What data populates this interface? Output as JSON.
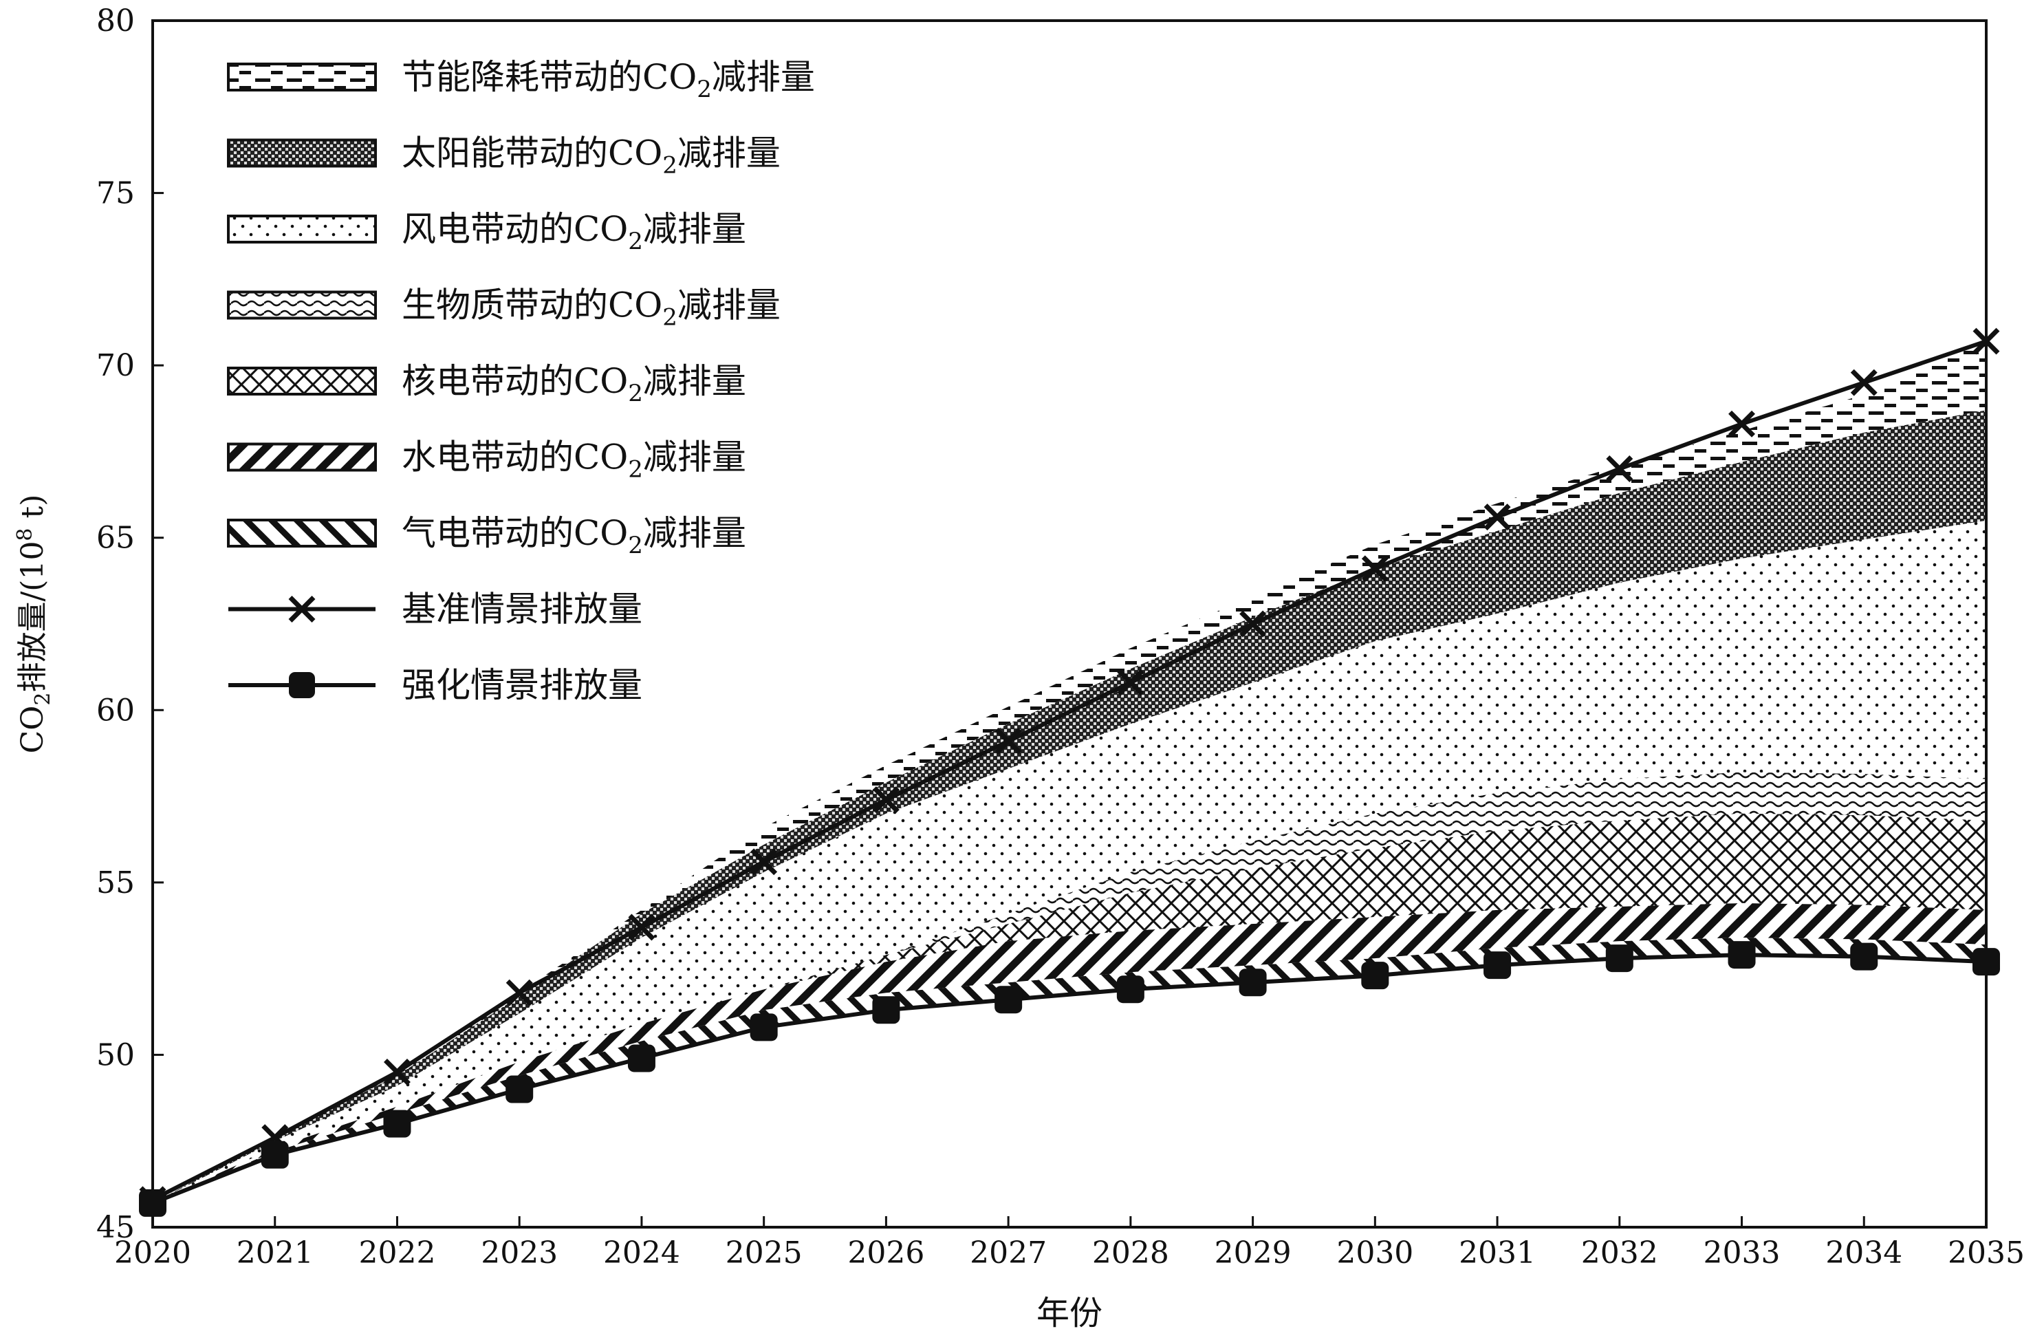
{
  "chart_data": {
    "type": "area",
    "xlabel": "年份",
    "ylabel_main": "CO",
    "ylabel_sub": "2",
    "ylabel_rest": "排放量/(10",
    "ylabel_sup": "8",
    "ylabel_tail": " t)",
    "x": [
      2020,
      2021,
      2022,
      2023,
      2024,
      2025,
      2026,
      2027,
      2028,
      2029,
      2030,
      2031,
      2032,
      2033,
      2034,
      2035
    ],
    "x_tick_labels": [
      "2020",
      "2021",
      "2022",
      "2023",
      "2024",
      "2025",
      "2026",
      "2027",
      "2028",
      "2029",
      "2030",
      "2031",
      "2032",
      "2033",
      "2034",
      "2035"
    ],
    "ylim": [
      45,
      80
    ],
    "y_ticks": [
      45,
      50,
      55,
      60,
      65,
      70,
      75,
      80
    ],
    "y_tick_labels": [
      "45",
      "50",
      "55",
      "60",
      "65",
      "70",
      "75",
      "80"
    ],
    "baseline_series": {
      "name": "基准情景排放量",
      "marker": "x",
      "values": [
        45.8,
        47.6,
        49.5,
        51.8,
        53.7,
        55.6,
        57.4,
        59.1,
        60.8,
        62.5,
        64.1,
        65.6,
        67.0,
        68.3,
        69.5,
        70.7
      ]
    },
    "enhanced_series": {
      "name": "强化情景排放量",
      "marker": "square",
      "values": [
        45.7,
        47.1,
        48.0,
        49.0,
        49.9,
        50.8,
        51.3,
        51.6,
        51.9,
        52.1,
        52.3,
        52.6,
        52.8,
        52.9,
        52.85,
        52.7
      ]
    },
    "stacked_areas": [
      {
        "name": "气电带动的CO2减排量",
        "pattern": "diag-right",
        "values": [
          0,
          0.1,
          0.3,
          0.4,
          0.5,
          0.5,
          0.5,
          0.5,
          0.5,
          0.5,
          0.5,
          0.5,
          0.5,
          0.5,
          0.5,
          0.5
        ]
      },
      {
        "name": "水电带动的CO2减排量",
        "pattern": "diag-left",
        "values": [
          0,
          0.1,
          0.2,
          0.4,
          0.5,
          0.6,
          0.9,
          1.2,
          1.2,
          1.2,
          1.2,
          1.1,
          1.0,
          1.0,
          1.0,
          1.0
        ]
      },
      {
        "name": "核电带动的CO2减排量",
        "pattern": "crosshatch",
        "values": [
          0,
          0,
          0,
          0,
          0,
          0,
          0.2,
          0.5,
          1.1,
          1.6,
          2.0,
          2.3,
          2.5,
          2.6,
          2.6,
          2.6
        ]
      },
      {
        "name": "生物质带动的CO2减排量",
        "pattern": "wavy",
        "values": [
          0,
          0,
          0,
          0,
          0,
          0,
          0,
          0.3,
          0.6,
          0.8,
          1.0,
          1.1,
          1.2,
          1.2,
          1.2,
          1.2
        ]
      },
      {
        "name": "风电带动的CO2减排量",
        "pattern": "dots",
        "values": [
          0,
          0.2,
          0.6,
          1.4,
          2.5,
          3.4,
          4.1,
          4.2,
          4.3,
          4.6,
          5.0,
          5.2,
          5.7,
          6.2,
          6.8,
          7.5
        ]
      },
      {
        "name": "太阳能带动的CO2减排量",
        "pattern": "dense-check",
        "values": [
          0,
          0.1,
          0.3,
          0.5,
          0.7,
          0.8,
          0.9,
          1.3,
          1.6,
          1.9,
          2.1,
          2.4,
          2.6,
          2.8,
          3.1,
          3.2
        ]
      },
      {
        "name": "节能降耗带动的CO2减排量",
        "pattern": "dashes",
        "values": [
          0.1,
          0.0,
          0.1,
          0.1,
          0.1,
          0.5,
          0.5,
          0.5,
          0.6,
          0.6,
          0.7,
          0.8,
          0.8,
          0.9,
          1.1,
          2.0
        ]
      }
    ],
    "legend": {
      "placement": "top-left",
      "items": [
        {
          "kind": "area",
          "pattern": "dashes",
          "prefix": "节能降耗带动的CO",
          "sub": "2",
          "suffix": "减排量"
        },
        {
          "kind": "area",
          "pattern": "dense-check",
          "prefix": "太阳能带动的CO",
          "sub": "2",
          "suffix": "减排量"
        },
        {
          "kind": "area",
          "pattern": "dots",
          "prefix": "风电带动的CO",
          "sub": "2",
          "suffix": "减排量"
        },
        {
          "kind": "area",
          "pattern": "wavy",
          "prefix": "生物质带动的CO",
          "sub": "2",
          "suffix": "减排量"
        },
        {
          "kind": "area",
          "pattern": "crosshatch",
          "prefix": "核电带动的CO",
          "sub": "2",
          "suffix": "减排量"
        },
        {
          "kind": "area",
          "pattern": "diag-left",
          "prefix": "水电带动的CO",
          "sub": "2",
          "suffix": "减排量"
        },
        {
          "kind": "area",
          "pattern": "diag-right",
          "prefix": "气电带动的CO",
          "sub": "2",
          "suffix": "减排量"
        },
        {
          "kind": "line",
          "marker": "x",
          "prefix": "基准情景排放量",
          "sub": "",
          "suffix": ""
        },
        {
          "kind": "line",
          "marker": "square",
          "prefix": "强化情景排放量",
          "sub": "",
          "suffix": ""
        }
      ]
    },
    "grid": false,
    "colors": {
      "ink": "#111111",
      "background": "#ffffff"
    }
  }
}
